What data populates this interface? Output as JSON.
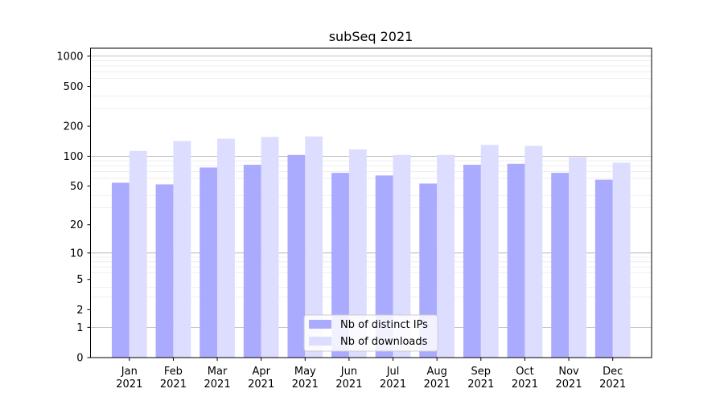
{
  "chart_data": {
    "type": "bar",
    "title": "subSeq 2021",
    "xlabel": "",
    "ylabel": "",
    "yscale": "log(1+y)",
    "ylim": [
      0,
      1200
    ],
    "y_ticks": [
      0,
      1,
      2,
      5,
      10,
      20,
      50,
      100,
      200,
      500,
      1000
    ],
    "categories": [
      "Jan\n2021",
      "Feb\n2021",
      "Mar\n2021",
      "Apr\n2021",
      "May\n2021",
      "Jun\n2021",
      "Jul\n2021",
      "Aug\n2021",
      "Sep\n2021",
      "Oct\n2021",
      "Nov\n2021",
      "Dec\n2021"
    ],
    "series": [
      {
        "name": "Nb of distinct IPs",
        "color": "#aaaaff",
        "values": [
          54,
          52,
          77,
          82,
          103,
          68,
          64,
          53,
          82,
          84,
          68,
          58
        ]
      },
      {
        "name": "Nb of downloads",
        "color": "#ddddff",
        "values": [
          113,
          142,
          150,
          156,
          158,
          117,
          103,
          103,
          130,
          127,
          98,
          86
        ]
      }
    ],
    "legend": {
      "position": "lower-center"
    },
    "grid": {
      "major_color": "#b0b0b0",
      "minor_color": "#ebebeb"
    }
  }
}
